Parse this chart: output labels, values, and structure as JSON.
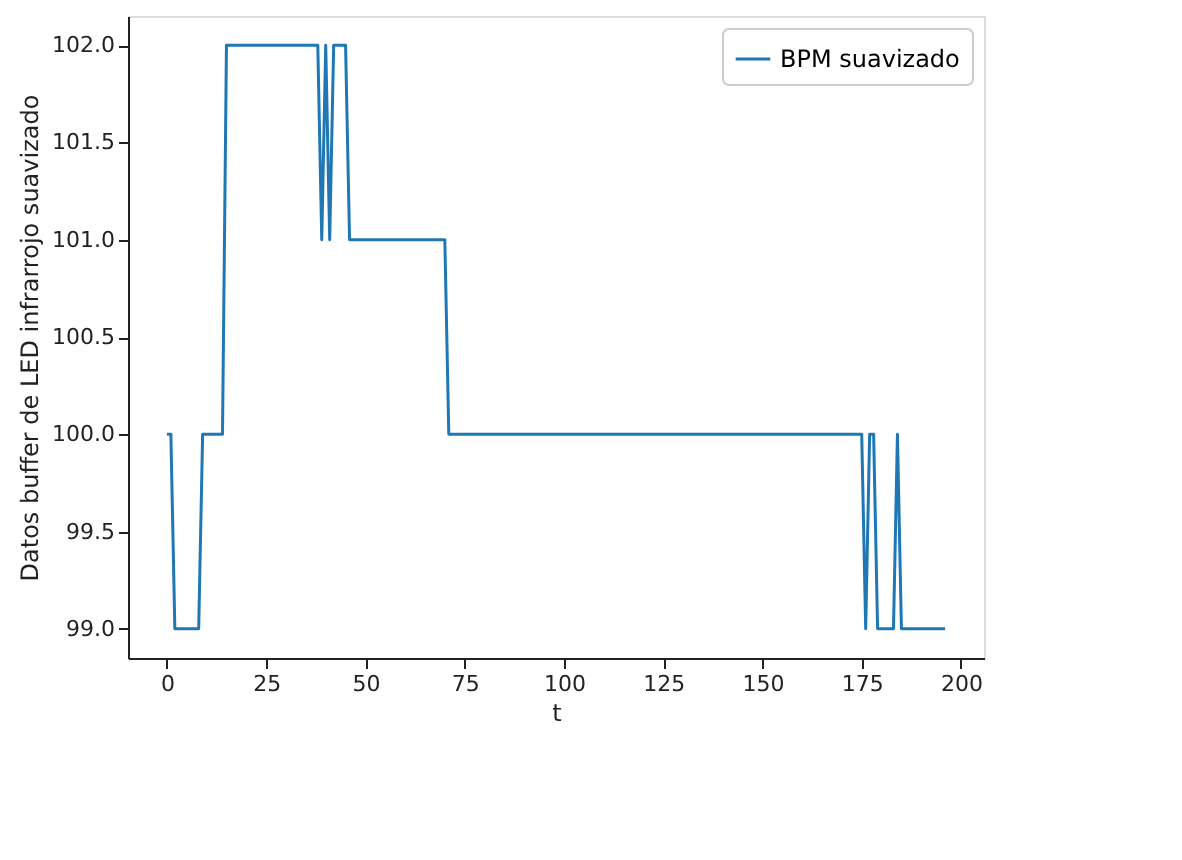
{
  "chart_data": {
    "type": "line",
    "xlabel": "t",
    "ylabel": "Datos buffer de LED infrarrojo suavizado",
    "x": [
      0,
      1,
      2,
      8,
      9,
      14,
      15,
      38,
      39,
      40,
      41,
      42,
      45,
      46,
      70,
      71,
      175,
      176,
      177,
      178,
      179,
      183,
      184,
      185,
      196
    ],
    "series": [
      {
        "name": "BPM suavizado",
        "color": "#1f77b4",
        "values": [
          100,
          100,
          99,
          99,
          100,
          100,
          102,
          102,
          101,
          102,
          101,
          102,
          102,
          101,
          101,
          100,
          100,
          99,
          100,
          100,
          99,
          99,
          100,
          99,
          99
        ]
      }
    ],
    "xlim": [
      -9.8,
      205.8
    ],
    "xticks": [
      0,
      25,
      50,
      75,
      100,
      125,
      150,
      175,
      200
    ],
    "ylim": [
      98.85,
      102.15
    ],
    "yticks": [
      {
        "value": 99,
        "label": "99.0"
      },
      {
        "value": 99.5,
        "label": "99.5"
      },
      {
        "value": 100,
        "label": "100.0"
      },
      {
        "value": 100.5,
        "label": "100.5"
      },
      {
        "value": 101,
        "label": "101.0"
      },
      {
        "value": 101.5,
        "label": "101.5"
      },
      {
        "value": 102,
        "label": "102.0"
      }
    ],
    "legend": "top right",
    "grid": false
  }
}
